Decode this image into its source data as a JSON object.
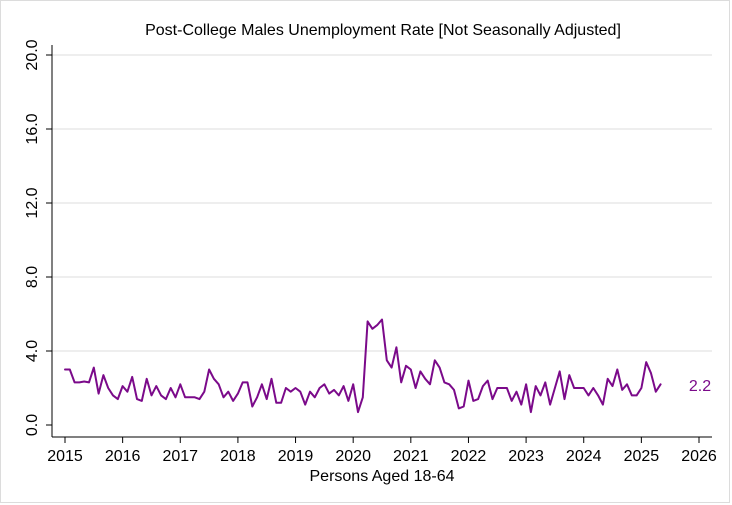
{
  "chart_data": {
    "type": "line",
    "title": "Post-College Males Unemployment Rate [Not Seasonally Adjusted]",
    "xlabel": "Persons Aged 18-64",
    "ylabel": "",
    "xlim": [
      2015,
      2026
    ],
    "ylim": [
      0,
      20
    ],
    "y_ticks": [
      "0.0",
      "4.0",
      "8.0",
      "12.0",
      "16.0",
      "20.0"
    ],
    "x_ticks": [
      "2015",
      "2016",
      "2017",
      "2018",
      "2019",
      "2020",
      "2021",
      "2022",
      "2023",
      "2024",
      "2025",
      "2026"
    ],
    "grid": "horizontal",
    "line_color": "#7b0a8a",
    "end_label": "2.2",
    "series": [
      {
        "start": "2015-01",
        "values": [
          3.0,
          3.0,
          2.3,
          2.3,
          2.35,
          2.3,
          3.1,
          1.7,
          2.7,
          2.0,
          1.6,
          1.4,
          2.1,
          1.8,
          2.6,
          1.4,
          1.3,
          2.5,
          1.6,
          2.1,
          1.6,
          1.4,
          2.0,
          1.5,
          2.2,
          1.5,
          1.5,
          1.5,
          1.4,
          1.8,
          3.0,
          2.5,
          2.2,
          1.5,
          1.8,
          1.3,
          1.7,
          2.3,
          2.3,
          1.0,
          1.5,
          2.2,
          1.4,
          2.5,
          1.2,
          1.2,
          2.0,
          1.8,
          2.0,
          1.8,
          1.1,
          1.8,
          1.5,
          2.0,
          2.2,
          1.7,
          1.9,
          1.6,
          2.1,
          1.3,
          2.2,
          0.7,
          1.5,
          5.6,
          5.2,
          5.4,
          5.7,
          3.5,
          3.1,
          4.2,
          2.3,
          3.2,
          3.0,
          2.0,
          2.9,
          2.5,
          2.2,
          3.5,
          3.1,
          2.3,
          2.2,
          1.9,
          0.9,
          1.0,
          2.4,
          1.3,
          1.4,
          2.1,
          2.4,
          1.4,
          2.0,
          2.0,
          2.0,
          1.3,
          1.8,
          1.1,
          2.2,
          0.7,
          2.1,
          1.6,
          2.3,
          1.1,
          2.0,
          2.9,
          1.4,
          2.7,
          2.0,
          2.0,
          2.0,
          1.6,
          2.0,
          1.6,
          1.1,
          2.5,
          2.1,
          3.0,
          1.9,
          2.2,
          1.6,
          1.6,
          2.0,
          3.4,
          2.8,
          1.8,
          2.2
        ]
      }
    ]
  }
}
